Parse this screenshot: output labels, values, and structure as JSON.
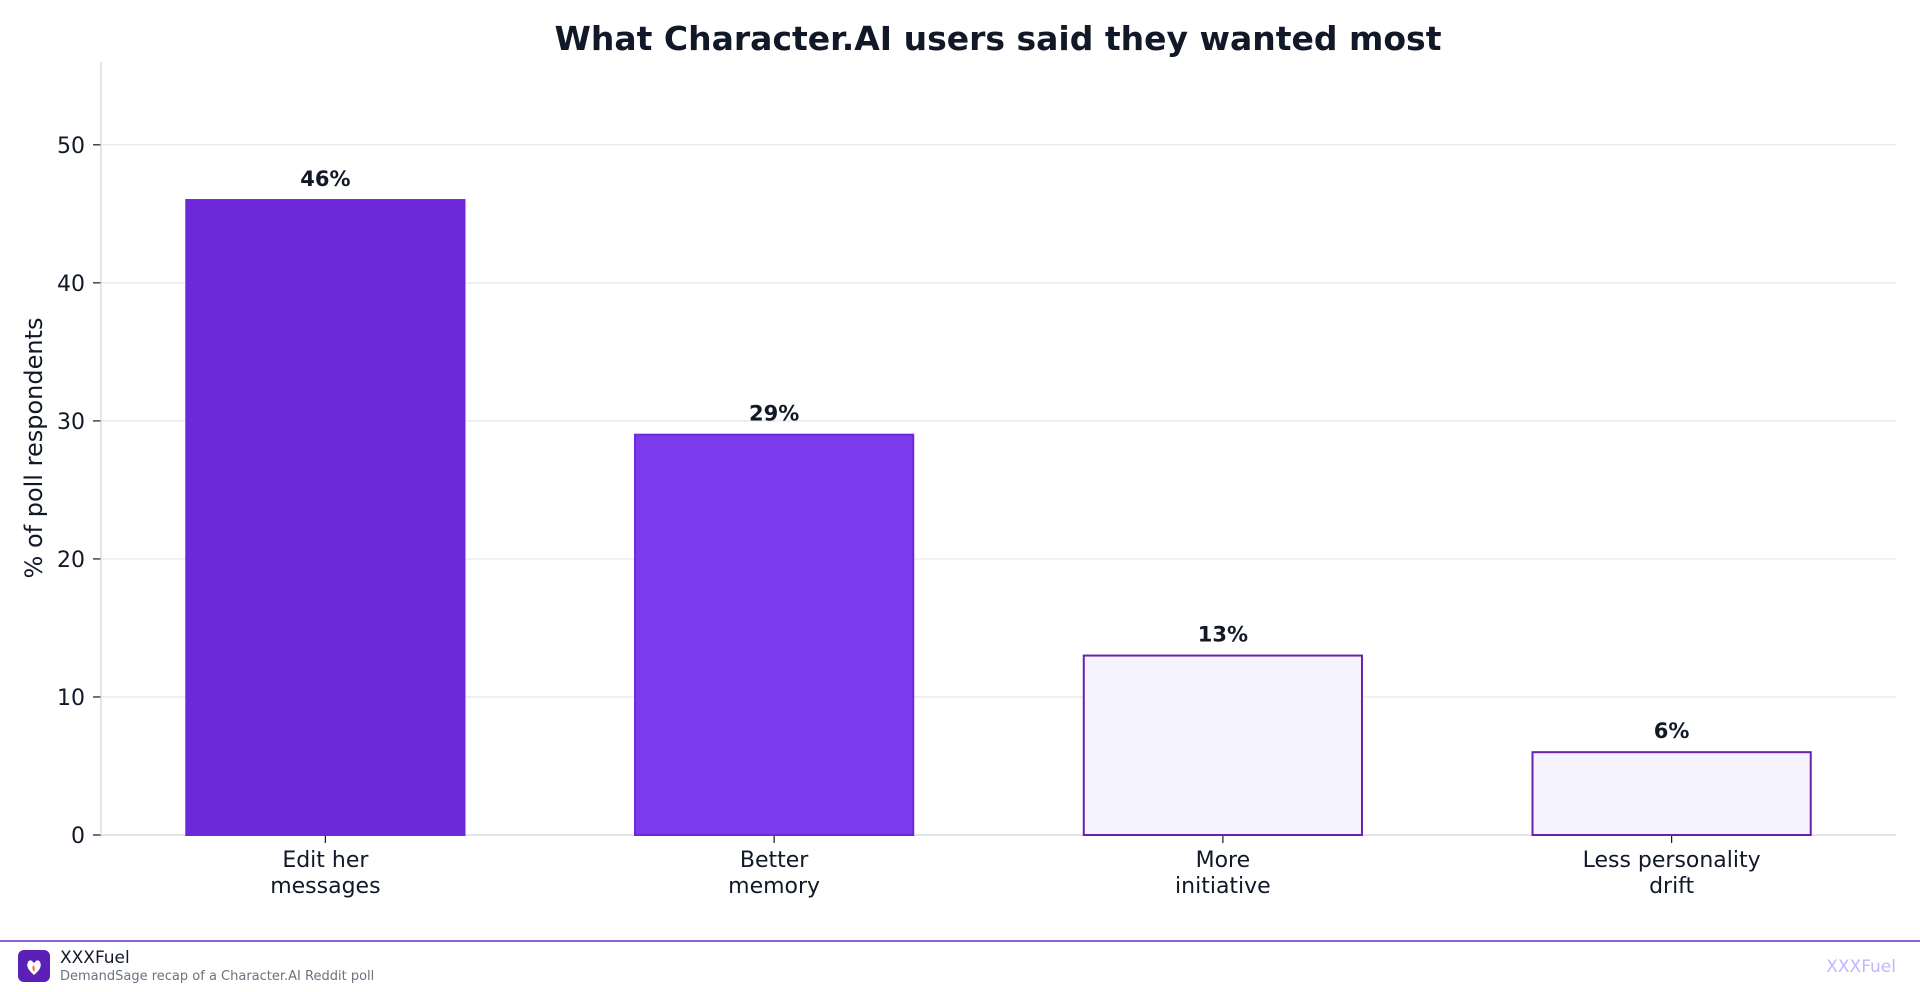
{
  "chart_data": {
    "type": "bar",
    "title": "What Character.AI users said they wanted most",
    "xlabel": "",
    "ylabel": "% of poll respondents",
    "categories": [
      [
        "Edit her",
        "messages"
      ],
      [
        "Better",
        "memory"
      ],
      [
        "More",
        "initiative"
      ],
      [
        "Less personality",
        "drift"
      ]
    ],
    "values": [
      46,
      29,
      13,
      6
    ],
    "value_labels": [
      "46%",
      "29%",
      "13%",
      "6%"
    ],
    "ylim": [
      0,
      56
    ],
    "yticks": [
      0,
      10,
      20,
      30,
      40,
      50
    ],
    "grid": true,
    "legend": "none",
    "colors": {
      "bar_fill": [
        "#6d28d9",
        "#7c3aed",
        "#f5f3ff",
        "#f5f3ff"
      ],
      "bar_stroke": [
        "#6d28d9",
        "#6d28d9",
        "#6b21a8",
        "#6b21a8"
      ],
      "grid": "#e5e7eb",
      "axis": "#d1d5db",
      "text": "#111827"
    }
  },
  "footer": {
    "brand_name": "XXXFuel",
    "source": "DemandSage recap of a Character.AI Reddit poll",
    "watermark": "XXXFuel",
    "logo_icon": "flame-heart-icon",
    "accent": "#8a63d2"
  }
}
